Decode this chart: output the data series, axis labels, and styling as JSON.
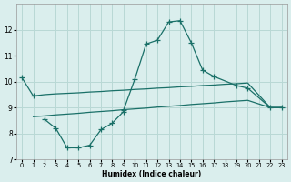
{
  "xlabel": "Humidex (Indice chaleur)",
  "background_color": "#daeeed",
  "grid_color": "#b8d8d5",
  "line_color": "#1a7068",
  "xlim": [
    -0.5,
    23.5
  ],
  "ylim": [
    7.0,
    13.0
  ],
  "yticks": [
    7,
    8,
    9,
    10,
    11,
    12
  ],
  "xticks": [
    0,
    1,
    2,
    3,
    4,
    5,
    6,
    7,
    8,
    9,
    10,
    11,
    12,
    13,
    14,
    15,
    16,
    17,
    18,
    19,
    20,
    21,
    22,
    23
  ],
  "curve_upper": [
    [
      0,
      10.15
    ],
    [
      1,
      9.45
    ],
    [
      9,
      8.9
    ],
    [
      10,
      10.1
    ],
    [
      11,
      11.45
    ],
    [
      12,
      11.6
    ],
    [
      13,
      12.3
    ],
    [
      14,
      12.35
    ],
    [
      15,
      11.5
    ],
    [
      16,
      10.45
    ],
    [
      17,
      10.2
    ],
    [
      19,
      9.85
    ],
    [
      20,
      9.75
    ],
    [
      22,
      9.0
    ],
    [
      23,
      9.0
    ]
  ],
  "curve_lower": [
    [
      2,
      8.55
    ],
    [
      3,
      8.2
    ],
    [
      4,
      7.45
    ],
    [
      5,
      7.45
    ],
    [
      6,
      7.55
    ],
    [
      7,
      8.15
    ],
    [
      8,
      8.4
    ],
    [
      9,
      8.85
    ]
  ],
  "curve_line1": [
    [
      1,
      9.45
    ],
    [
      2,
      9.5
    ],
    [
      3,
      9.53
    ],
    [
      4,
      9.55
    ],
    [
      5,
      9.57
    ],
    [
      6,
      9.6
    ],
    [
      7,
      9.62
    ],
    [
      8,
      9.65
    ],
    [
      9,
      9.67
    ],
    [
      10,
      9.7
    ],
    [
      11,
      9.72
    ],
    [
      12,
      9.75
    ],
    [
      13,
      9.77
    ],
    [
      14,
      9.8
    ],
    [
      15,
      9.82
    ],
    [
      16,
      9.85
    ],
    [
      17,
      9.87
    ],
    [
      18,
      9.9
    ],
    [
      19,
      9.92
    ],
    [
      20,
      9.95
    ],
    [
      22,
      9.0
    ],
    [
      23,
      9.0
    ]
  ],
  "curve_line2": [
    [
      1,
      8.65
    ],
    [
      2,
      8.68
    ],
    [
      3,
      8.72
    ],
    [
      4,
      8.75
    ],
    [
      5,
      8.78
    ],
    [
      6,
      8.82
    ],
    [
      7,
      8.85
    ],
    [
      8,
      8.88
    ],
    [
      9,
      8.92
    ],
    [
      10,
      8.95
    ],
    [
      11,
      8.98
    ],
    [
      12,
      9.02
    ],
    [
      13,
      9.05
    ],
    [
      14,
      9.08
    ],
    [
      15,
      9.12
    ],
    [
      16,
      9.15
    ],
    [
      17,
      9.18
    ],
    [
      18,
      9.22
    ],
    [
      19,
      9.25
    ],
    [
      20,
      9.28
    ],
    [
      22,
      9.0
    ],
    [
      23,
      9.0
    ]
  ]
}
